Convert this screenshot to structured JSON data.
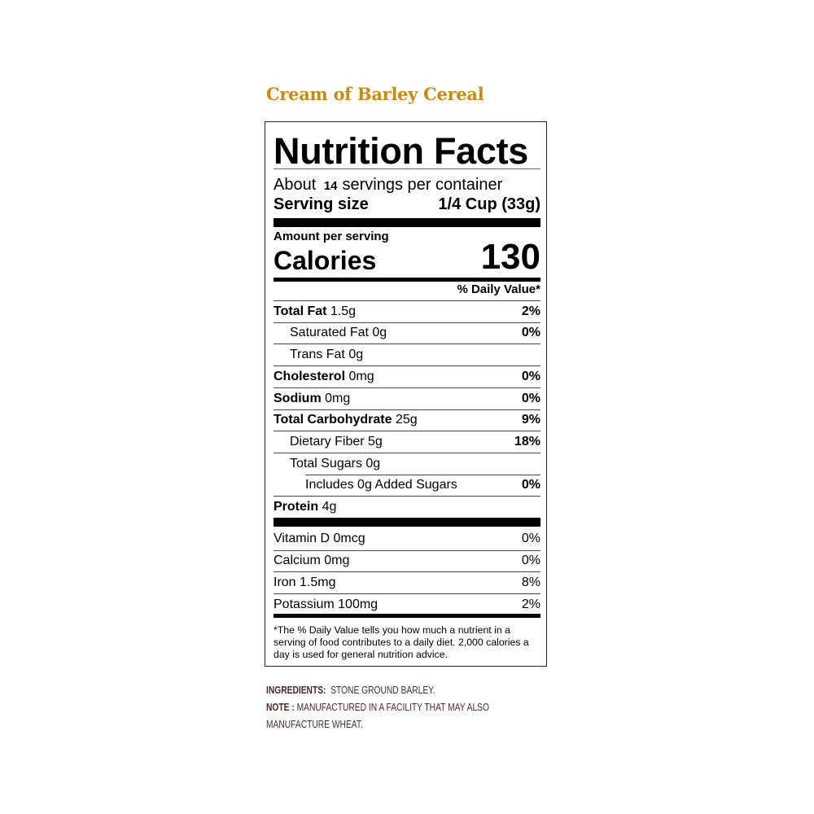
{
  "product_name": "Cream of Barley Cereal",
  "label": {
    "title": "Nutrition Facts",
    "servings_prefix": "About",
    "servings_count": "14",
    "servings_suffix": "servings per container",
    "serving_size_label": "Serving size",
    "serving_size_value": "1/4 Cup (33g)",
    "amount_per_serving": "Amount per serving",
    "calories_label": "Calories",
    "calories_value": "130",
    "daily_value_header": "% Daily Value*",
    "nutrients": [
      {
        "name": "Total Fat",
        "amount": "1.5g",
        "dv": "2%"
      },
      {
        "name": "Saturated Fat 0g",
        "amount": "",
        "dv": "0%"
      },
      {
        "name": "Trans Fat 0g",
        "amount": "",
        "dv": ""
      },
      {
        "name": "Cholesterol",
        "amount": "0mg",
        "dv": "0%"
      },
      {
        "name": "Sodium",
        "amount": "0mg",
        "dv": "0%"
      },
      {
        "name": "Total Carbohydrate",
        "amount": "25g",
        "dv": "9%"
      },
      {
        "name": "Dietary Fiber 5g",
        "amount": "",
        "dv": "18%"
      },
      {
        "name": "Total Sugars 0g",
        "amount": "",
        "dv": ""
      },
      {
        "name": "Includes 0g Added Sugars",
        "amount": "",
        "dv": "0%"
      },
      {
        "name": "Protein",
        "amount": "4g",
        "dv": ""
      }
    ],
    "vitamins": [
      {
        "name": "Vitamin D 0mcg",
        "dv": "0%"
      },
      {
        "name": "Calcium 0mg",
        "dv": "0%"
      },
      {
        "name": "Iron 1.5mg",
        "dv": "8%"
      },
      {
        "name": "Potassium 100mg",
        "dv": "2%"
      }
    ],
    "footnote": "*The % Daily Value tells you how much a nutrient in a serving of food contributes to a daily diet. 2,000 calories a day is used for general nutrition advice."
  },
  "ingredients": {
    "label": "INGREDIENTS:",
    "text": "STONE GROUND BARLEY.",
    "note_label": "NOTE :",
    "note_line1": "MANUFACTURED IN A FACILITY THAT MAY ALSO",
    "note_line2": "MANUFACTURE WHEAT."
  }
}
